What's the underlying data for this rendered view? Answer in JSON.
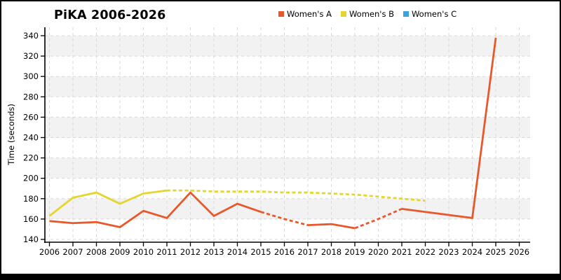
{
  "chart_data": {
    "type": "line",
    "title": "PiKA 2006-2026",
    "xlabel": "",
    "ylabel": "Time (seconds)",
    "x_ticks": [
      2006,
      2007,
      2008,
      2009,
      2010,
      2011,
      2012,
      2013,
      2014,
      2015,
      2016,
      2017,
      2018,
      2019,
      2020,
      2021,
      2022,
      2023,
      2024,
      2025,
      2026
    ],
    "y_ticks": [
      140,
      160,
      180,
      200,
      220,
      240,
      260,
      280,
      300,
      320,
      340
    ],
    "ylim": [
      137,
      348
    ],
    "xlim": [
      2005.8,
      2026.5
    ],
    "grid": "dashed, both axes, with alternating light-gray horizontal bands",
    "legend_position": "top-center",
    "series": [
      {
        "name": "Women's A",
        "color": "#e8582a",
        "x": [
          2006,
          2007,
          2008,
          2009,
          2010,
          2011,
          2012,
          2013,
          2014,
          2015,
          2016,
          2017,
          2018,
          2019,
          2020,
          2021,
          2022,
          2023,
          2024,
          2025
        ],
        "values": [
          158,
          156,
          157,
          152,
          168,
          161,
          186,
          163,
          175,
          167,
          160,
          154,
          155,
          151,
          160,
          170,
          167,
          164,
          161,
          338
        ],
        "line_style_segments": [
          {
            "from": 2006,
            "to": 2015,
            "style": "solid"
          },
          {
            "from": 2015,
            "to": 2017,
            "style": "dashed"
          },
          {
            "from": 2017,
            "to": 2019,
            "style": "solid"
          },
          {
            "from": 2019,
            "to": 2021,
            "style": "dashed"
          },
          {
            "from": 2021,
            "to": 2025,
            "style": "solid"
          }
        ]
      },
      {
        "name": "Women's B",
        "color": "#e4d62e",
        "x": [
          2006,
          2007,
          2008,
          2009,
          2010,
          2011,
          2012,
          2013,
          2014,
          2015,
          2016,
          2017,
          2018,
          2019,
          2020,
          2021,
          2022
        ],
        "values": [
          163,
          181,
          186,
          175,
          185,
          188,
          188,
          187,
          187,
          187,
          186,
          186,
          185,
          184,
          182,
          180,
          178
        ],
        "line_style_segments": [
          {
            "from": 2006,
            "to": 2011,
            "style": "solid"
          },
          {
            "from": 2011,
            "to": 2022,
            "style": "dashed"
          }
        ]
      },
      {
        "name": "Women's C",
        "color": "#3ba2db",
        "x": [],
        "values": [],
        "line_style_segments": []
      }
    ]
  },
  "colors": {
    "band": "#f2f2f2",
    "grid": "#d9d9d9",
    "axis": "#000000",
    "frame": "#000000"
  }
}
